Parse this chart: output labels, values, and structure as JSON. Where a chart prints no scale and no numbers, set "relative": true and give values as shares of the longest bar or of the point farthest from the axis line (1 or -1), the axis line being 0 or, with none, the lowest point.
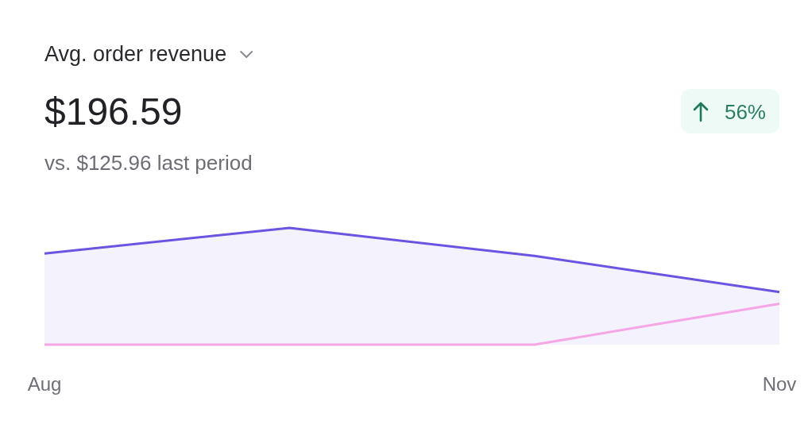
{
  "chart_data": {
    "type": "line",
    "title": "Avg. order revenue",
    "subtitle": "vs. $125.96 last period",
    "annotations": [
      "$196.59",
      "56%"
    ],
    "categories": [
      "Aug",
      null,
      null,
      "Nov"
    ],
    "relative": true,
    "tick_labels": "x",
    "series": [
      {
        "type": "area",
        "color": "#6a55e2",
        "values": [
          0.78,
          1,
          0.76,
          0.45
        ]
      },
      {
        "color": "#f5a6e4",
        "values": [
          0,
          0,
          0,
          0.35
        ]
      }
    ]
  }
}
